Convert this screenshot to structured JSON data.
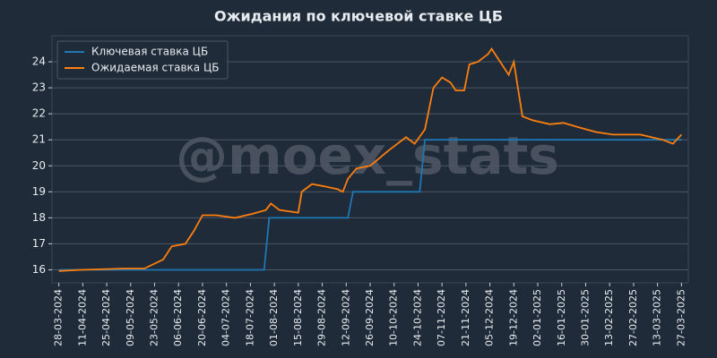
{
  "chart_data": {
    "type": "line",
    "title": "Ожидания по ключевой ставке ЦБ",
    "watermark": "@moex_stats",
    "grid": true,
    "legend": "upper left",
    "xlim": [
      "24-03-2024",
      "31-03-2025"
    ],
    "xticks": [
      "28-03-2024",
      "11-04-2024",
      "25-04-2024",
      "09-05-2024",
      "23-05-2024",
      "06-06-2024",
      "20-06-2024",
      "04-07-2024",
      "18-07-2024",
      "01-08-2024",
      "15-08-2024",
      "29-08-2024",
      "12-09-2024",
      "26-09-2024",
      "10-10-2024",
      "24-10-2024",
      "07-11-2024",
      "21-11-2024",
      "05-12-2024",
      "19-12-2024",
      "02-01-2025",
      "16-01-2025",
      "30-01-2025",
      "13-02-2025",
      "27-02-2025",
      "13-03-2025",
      "27-03-2025"
    ],
    "ylim": [
      15.5,
      25
    ],
    "yticks": [
      16,
      17,
      18,
      19,
      20,
      21,
      22,
      23,
      24
    ],
    "series": [
      {
        "name": "Ключевая ставка ЦБ",
        "color": "#1f77b4",
        "x": [
          "28-03-2024",
          "26-07-2024",
          "29-07-2024",
          "13-09-2024",
          "16-09-2024",
          "25-10-2024",
          "28-10-2024",
          "27-03-2025"
        ],
        "values": [
          16,
          16,
          18,
          18,
          19,
          19,
          21,
          21
        ]
      },
      {
        "name": "Ожидаемая ставка ЦБ",
        "color": "#ff7f0e",
        "x": [
          "28-03-2024",
          "10-04-2024",
          "06-05-2024",
          "17-05-2024",
          "28-05-2024",
          "02-06-2024",
          "10-06-2024",
          "15-06-2024",
          "20-06-2024",
          "28-06-2024",
          "09-07-2024",
          "19-07-2024",
          "27-07-2024",
          "30-07-2024",
          "04-08-2024",
          "15-08-2024",
          "17-08-2024",
          "23-08-2024",
          "31-08-2024",
          "07-09-2024",
          "10-09-2024",
          "13-09-2024",
          "18-09-2024",
          "26-09-2024",
          "07-10-2024",
          "17-10-2024",
          "22-10-2024",
          "28-10-2024",
          "02-11-2024",
          "07-11-2024",
          "12-11-2024",
          "15-11-2024",
          "20-11-2024",
          "23-11-2024",
          "28-11-2024",
          "04-12-2024",
          "06-12-2024",
          "11-12-2024",
          "16-12-2024",
          "19-12-2024",
          "24-12-2024",
          "30-12-2024",
          "09-01-2025",
          "17-01-2025",
          "25-01-2025",
          "05-02-2025",
          "15-02-2025",
          "03-03-2025",
          "16-03-2025",
          "22-03-2025",
          "27-03-2025"
        ],
        "values": [
          15.95,
          16.0,
          16.05,
          16.05,
          16.4,
          16.9,
          17.0,
          17.5,
          18.1,
          18.1,
          18.0,
          18.15,
          18.3,
          18.55,
          18.3,
          18.2,
          19.0,
          19.3,
          19.2,
          19.1,
          19.0,
          19.5,
          19.9,
          20.0,
          20.6,
          21.1,
          20.85,
          21.4,
          23.0,
          23.4,
          23.2,
          22.9,
          22.9,
          23.9,
          24.0,
          24.3,
          24.5,
          24.0,
          23.5,
          24.0,
          21.9,
          21.75,
          21.6,
          21.65,
          21.5,
          21.3,
          21.2,
          21.2,
          21.0,
          20.85,
          21.2
        ]
      }
    ]
  }
}
